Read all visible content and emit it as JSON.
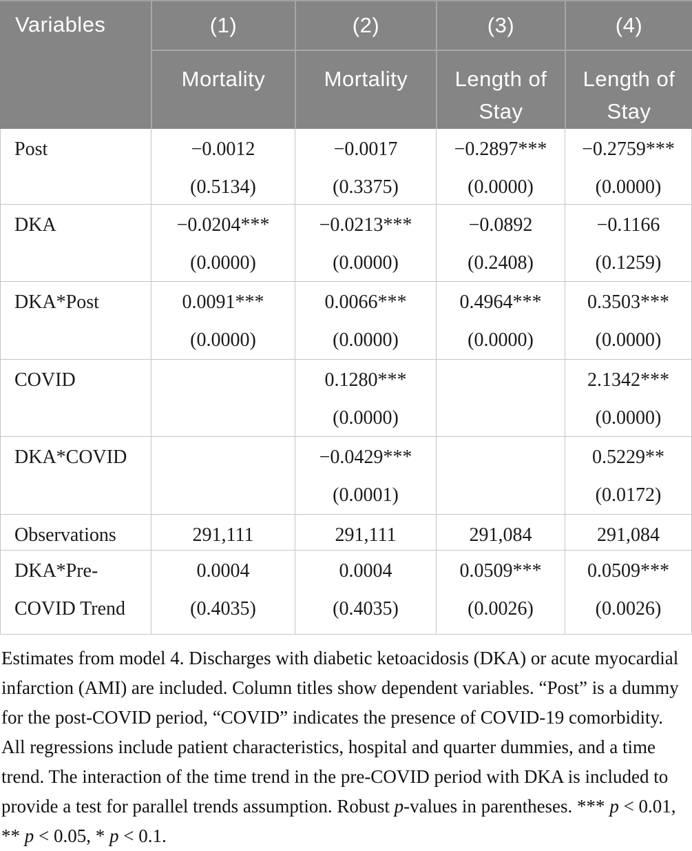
{
  "table": {
    "corner_label": "Variables",
    "columns": [
      {
        "number": "(1)",
        "title": "Mortality"
      },
      {
        "number": "(2)",
        "title": "Mortality"
      },
      {
        "number": "(3)",
        "title": "Length of Stay"
      },
      {
        "number": "(4)",
        "title": "Length of Stay"
      }
    ],
    "rows": [
      {
        "label": "Post",
        "cells": [
          {
            "estimate": "−0.0012",
            "pvalue": "(0.5134)"
          },
          {
            "estimate": "−0.0017",
            "pvalue": "(0.3375)"
          },
          {
            "estimate": "−0.2897***",
            "pvalue": "(0.0000)"
          },
          {
            "estimate": "−0.2759***",
            "pvalue": "(0.0000)"
          }
        ]
      },
      {
        "label": "DKA",
        "cells": [
          {
            "estimate": "−0.0204***",
            "pvalue": "(0.0000)"
          },
          {
            "estimate": "−0.0213***",
            "pvalue": "(0.0000)"
          },
          {
            "estimate": "−0.0892",
            "pvalue": "(0.2408)"
          },
          {
            "estimate": "−0.1166",
            "pvalue": "(0.1259)"
          }
        ]
      },
      {
        "label": "DKA*Post",
        "cells": [
          {
            "estimate": "0.0091***",
            "pvalue": "(0.0000)"
          },
          {
            "estimate": "0.0066***",
            "pvalue": "(0.0000)"
          },
          {
            "estimate": "0.4964***",
            "pvalue": "(0.0000)"
          },
          {
            "estimate": "0.3503***",
            "pvalue": "(0.0000)"
          }
        ]
      },
      {
        "label": "COVID",
        "cells": [
          {
            "estimate": "",
            "pvalue": ""
          },
          {
            "estimate": "0.1280***",
            "pvalue": "(0.0000)"
          },
          {
            "estimate": "",
            "pvalue": ""
          },
          {
            "estimate": "2.1342***",
            "pvalue": "(0.0000)"
          }
        ]
      },
      {
        "label": "DKA*COVID",
        "cells": [
          {
            "estimate": "",
            "pvalue": ""
          },
          {
            "estimate": "−0.0429***",
            "pvalue": "(0.0001)"
          },
          {
            "estimate": "",
            "pvalue": ""
          },
          {
            "estimate": "0.5229**",
            "pvalue": "(0.0172)"
          }
        ]
      },
      {
        "label": "Observations",
        "cells": [
          {
            "estimate": "291,111",
            "pvalue": ""
          },
          {
            "estimate": "291,111",
            "pvalue": ""
          },
          {
            "estimate": "291,084",
            "pvalue": ""
          },
          {
            "estimate": "291,084",
            "pvalue": ""
          }
        ]
      },
      {
        "label": "DKA*Pre-COVID Trend",
        "cells": [
          {
            "estimate": "0.0004",
            "pvalue": "(0.4035)"
          },
          {
            "estimate": "0.0004",
            "pvalue": "(0.4035)"
          },
          {
            "estimate": "0.0509***",
            "pvalue": "(0.0026)"
          },
          {
            "estimate": "0.0509***",
            "pvalue": "(0.0026)"
          }
        ]
      }
    ]
  },
  "notes": {
    "segments": [
      {
        "text": "Estimates from model 4. Discharges with diabetic ketoacidosis (DKA) or acute myocardial infarction (AMI) are included. Column titles show dependent variables. “Post” is a dummy for the post-COVID period, “COVID” indicates the presence of COVID-19 comorbidity. All regressions include patient characteristics, hospital and quarter dummies, and a time trend. The interaction of the time trend in the pre-COVID period with DKA is included to provide a test for parallel trends assumption. Robust ",
        "italic": false
      },
      {
        "text": "p",
        "italic": true
      },
      {
        "text": "-values in parentheses. *** ",
        "italic": false
      },
      {
        "text": "p",
        "italic": true
      },
      {
        "text": " < 0.01, ** ",
        "italic": false
      },
      {
        "text": "p",
        "italic": true
      },
      {
        "text": " < 0.05, * ",
        "italic": false
      },
      {
        "text": "p",
        "italic": true
      },
      {
        "text": " < 0.1.",
        "italic": false
      }
    ]
  },
  "colors": {
    "header_bg": "#858585",
    "header_text": "#ffffff",
    "header_divider": "#a7a7a7",
    "body_border": "#c5c5c5",
    "body_text": "#1a1a1a"
  }
}
